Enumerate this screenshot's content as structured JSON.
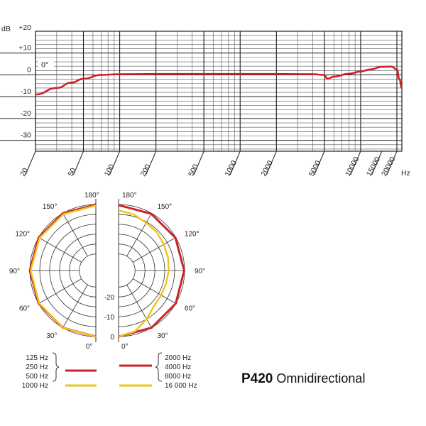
{
  "chart_data": [
    {
      "type": "line",
      "title": "",
      "xlabel": "Hz",
      "ylabel": "dB",
      "xscale": "log",
      "xlim": [
        20,
        22000
      ],
      "ylim": [
        -35,
        20
      ],
      "x_ticks": [
        "20",
        "50",
        "100",
        "200",
        "500",
        "1000",
        "2000",
        "5000",
        "10000",
        "15000",
        "20000"
      ],
      "y_ticks": [
        "+20",
        "+10",
        "0",
        "-10",
        "-20",
        "-30"
      ],
      "annotation": "0°",
      "grid": true,
      "series": [
        {
          "color": "#cc2229",
          "x": [
            20,
            30,
            40,
            50,
            70,
            100,
            200,
            500,
            1000,
            2000,
            4000,
            5000,
            5300,
            6000,
            8000,
            10000,
            12000,
            15000,
            18000,
            20000,
            21000,
            22000
          ],
          "y": [
            -9,
            -6,
            -3.5,
            -1.8,
            0,
            0.3,
            0.4,
            0.4,
            0.4,
            0.4,
            0.3,
            0,
            -1.8,
            -0.8,
            0.5,
            1.5,
            2.5,
            3.7,
            3.8,
            2.5,
            -2,
            -6
          ]
        }
      ]
    },
    {
      "type": "polar",
      "radial_ticks": [
        "0",
        "-10",
        "-20"
      ],
      "angle_labels_left": [
        "180°",
        "150°",
        "120°",
        "90°",
        "60°",
        "30°",
        "0°"
      ],
      "angle_labels_right": [
        "180°",
        "150°",
        "120°",
        "90°",
        "60°",
        "30°",
        "0°"
      ],
      "series": [
        {
          "side": "left",
          "color": "#cc2229",
          "angles": [
            0,
            30,
            60,
            90,
            120,
            150,
            180
          ],
          "levels": [
            0,
            0,
            0,
            0,
            0,
            0,
            0
          ]
        },
        {
          "side": "left",
          "color": "#f2c418",
          "angles": [
            0,
            30,
            60,
            90,
            120,
            150,
            180
          ],
          "levels": [
            0,
            0,
            -0.3,
            -0.4,
            -0.5,
            -0.5,
            -0.5
          ]
        },
        {
          "side": "right",
          "color": "#cc2229",
          "angles": [
            0,
            30,
            60,
            90,
            120,
            150,
            180
          ],
          "levels": [
            0,
            0,
            0,
            -0.2,
            -0.2,
            -0.3,
            -0.3
          ]
        },
        {
          "side": "right",
          "color": "#f2c418",
          "angles": [
            0,
            15,
            30,
            45,
            60,
            75,
            90,
            105,
            120,
            135,
            150,
            165,
            180
          ],
          "levels": [
            0,
            -1.5,
            -5,
            -8,
            -8.5,
            -8.5,
            -8,
            -7.5,
            -7,
            -6,
            -5.5,
            -4,
            -3
          ]
        }
      ]
    }
  ],
  "legend": {
    "left_labels": [
      "125 Hz",
      "250 Hz",
      "500 Hz",
      "1000 Hz"
    ],
    "right_labels": [
      "2000 Hz",
      "4000 Hz",
      "8000 Hz",
      "16 000 Hz"
    ],
    "red_color": "#cc2229",
    "yellow_color": "#f2c418"
  },
  "model": {
    "name": "P420",
    "pattern": "Omnidirectional"
  }
}
